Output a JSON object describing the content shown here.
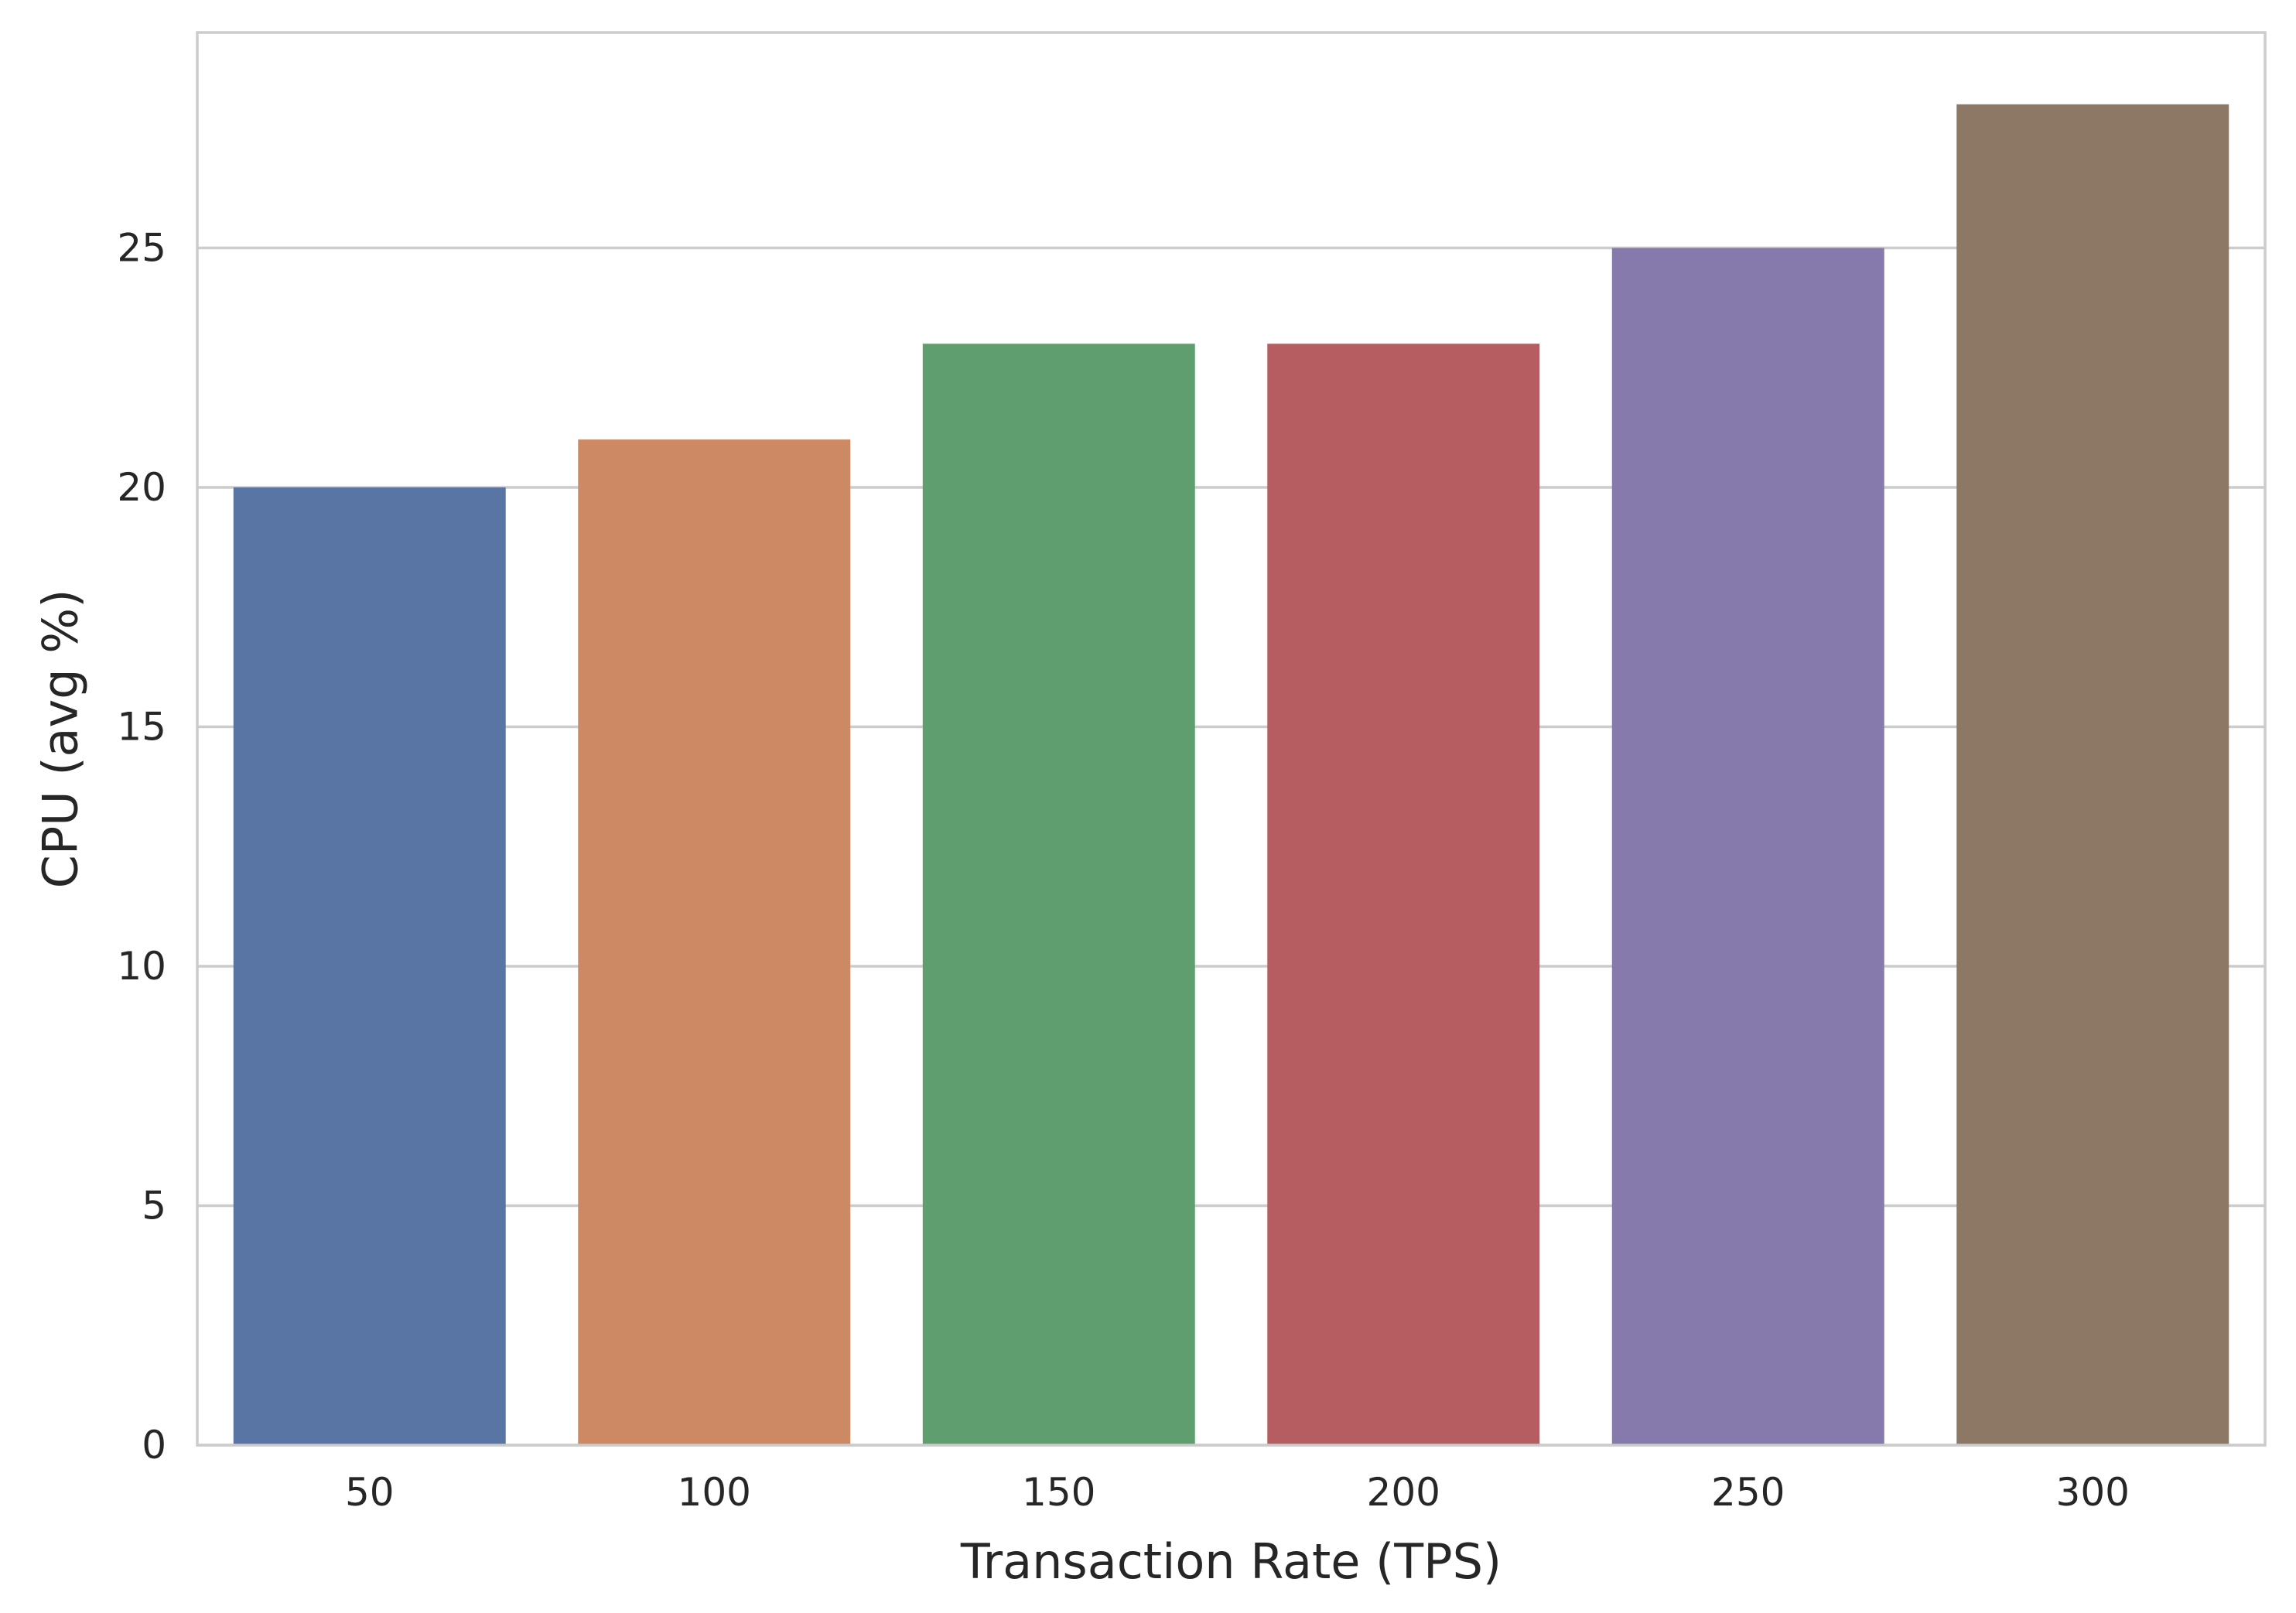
{
  "chart_data": {
    "type": "bar",
    "title": "",
    "xlabel": "Transaction Rate (TPS)",
    "ylabel": "CPU (avg %)",
    "categories": [
      "50",
      "100",
      "150",
      "200",
      "250",
      "300"
    ],
    "values": [
      20,
      21,
      23,
      23,
      25,
      28
    ],
    "colors": [
      "#5875a4",
      "#cc8963",
      "#5f9e6e",
      "#b55d60",
      "#857aab",
      "#8d7866"
    ],
    "ylim": [
      0,
      29.5
    ],
    "yticks": [
      0,
      5,
      10,
      15,
      20,
      25
    ],
    "grid": "horizontal",
    "legend": "none"
  }
}
